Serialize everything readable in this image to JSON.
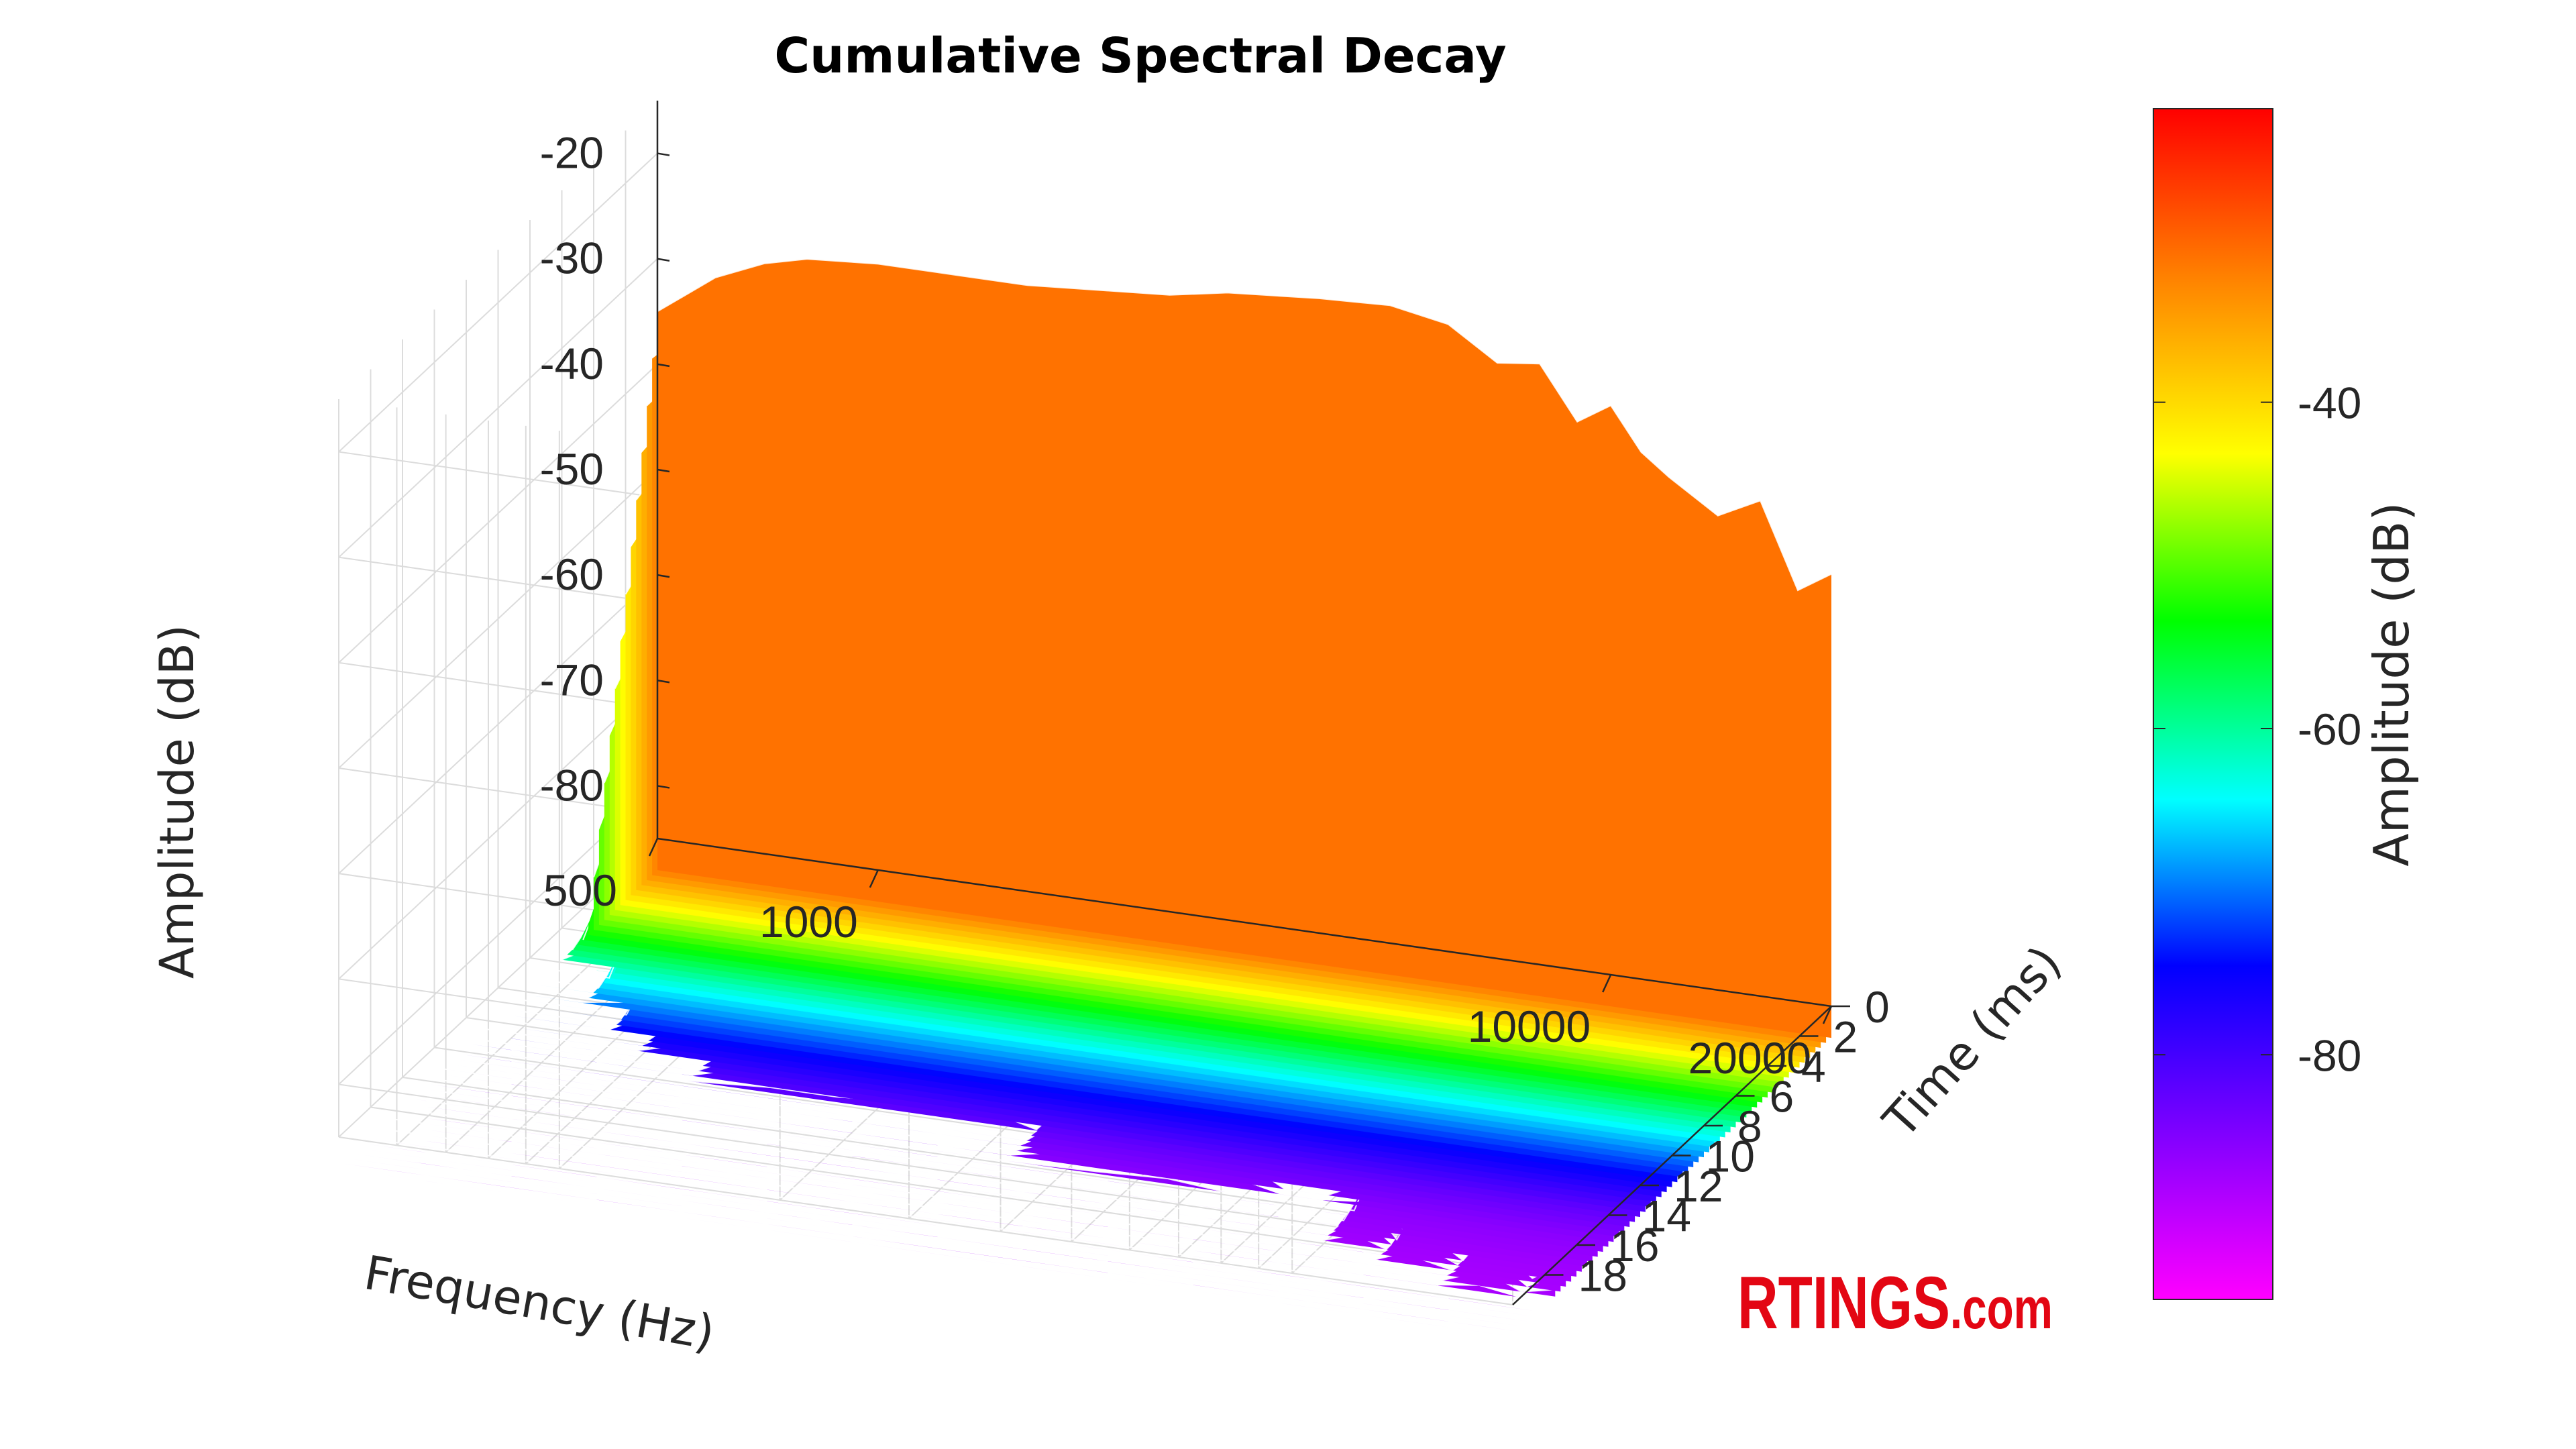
{
  "chart_data": {
    "type": "waterfall-3d",
    "title": "Cumulative Spectral Decay",
    "x_axis": {
      "label": "Frequency (Hz)",
      "scale": "log",
      "range": [
        500,
        20000
      ],
      "ticks": [
        "500",
        "1000",
        "10000",
        "20000"
      ]
    },
    "y_axis": {
      "label": "Time (ms)",
      "range": [
        0,
        20
      ],
      "ticks": [
        "0",
        "2",
        "4",
        "6",
        "8",
        "10",
        "12",
        "14",
        "16",
        "18"
      ]
    },
    "z_axis": {
      "label": "Amplitude (dB)",
      "range": [
        -85,
        -15
      ],
      "ticks": [
        "-20",
        "-30",
        "-40",
        "-50",
        "-60",
        "-70",
        "-80"
      ]
    },
    "colorbar": {
      "label": "Amplitude (dB)",
      "range": [
        -95,
        -22
      ],
      "ticks": [
        "-40",
        "-60",
        "-80"
      ],
      "colormap": [
        "#ff00ff",
        "#7f00ff",
        "#0000ff",
        "#00ffff",
        "#00ff00",
        "#ffff00",
        "#ff8000",
        "#ff0000"
      ]
    },
    "grid": true,
    "front_response": {
      "freq_hz": [
        500,
        600,
        700,
        800,
        1000,
        1300,
        1600,
        2000,
        2500,
        3000,
        4000,
        5000,
        6000,
        7000,
        8000,
        9000,
        10000,
        11000,
        12000,
        14000,
        16000,
        18000,
        20000
      ],
      "amplitude_db": [
        -35,
        -31,
        -29,
        -28,
        -27.5,
        -27.5,
        -27.5,
        -27,
        -26.5,
        -25.5,
        -24.8,
        -24.5,
        -25.5,
        -28.5,
        -28,
        -33,
        -31,
        -35,
        -37,
        -40,
        -38,
        -46,
        -44
      ]
    },
    "decay_rate_db_per_ms": [
      12,
      9,
      7,
      6,
      5.5,
      5,
      5,
      5,
      5,
      5.2,
      4.5,
      4.5,
      4.5,
      4.5,
      4.5,
      4,
      3.5,
      3.5,
      3,
      3,
      2.8,
      2.5,
      2.5
    ]
  },
  "brand": {
    "name": "RTINGS",
    "suffix": ".com",
    "color": "#e30613"
  }
}
